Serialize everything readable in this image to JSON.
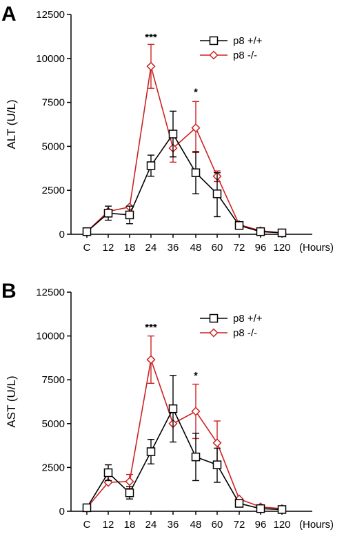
{
  "chart_data": [
    {
      "type": "line",
      "panel": "A",
      "ylabel": "ALT (U/L)",
      "xunit": "(Hours)",
      "categories": [
        "C",
        "12",
        "18",
        "24",
        "36",
        "48",
        "60",
        "72",
        "96",
        "120"
      ],
      "yticks": [
        "0",
        "2500",
        "5000",
        "7500",
        "10000",
        "12500"
      ],
      "ylim": [
        0,
        12500
      ],
      "grid": false,
      "legend_position": "top-right",
      "series": [
        {
          "name": "p8 +/+",
          "color": "#000000",
          "marker": "square",
          "values": [
            150,
            1200,
            1100,
            3900,
            5700,
            3500,
            2300,
            500,
            150,
            80
          ],
          "err_upper": [
            0,
            400,
            500,
            600,
            1300,
            1200,
            1200,
            0,
            0,
            0
          ],
          "err_lower": [
            0,
            400,
            500,
            600,
            1300,
            1200,
            1300,
            0,
            0,
            0
          ]
        },
        {
          "name": "p8 -/-",
          "color": "#cc2222",
          "marker": "diamond",
          "values": [
            150,
            1300,
            1550,
            9550,
            4900,
            6050,
            3300,
            550,
            200,
            80
          ],
          "err_upper": [
            0,
            0,
            0,
            1250,
            0,
            1500,
            300,
            0,
            0,
            0
          ],
          "err_lower": [
            0,
            0,
            0,
            1250,
            800,
            1400,
            300,
            0,
            0,
            0
          ]
        }
      ],
      "annotations": [
        {
          "category": "24",
          "value": 11200,
          "text": "***"
        },
        {
          "category": "48",
          "value": 8100,
          "text": "*"
        }
      ]
    },
    {
      "type": "line",
      "panel": "B",
      "ylabel": "AST (U/L)",
      "xunit": "(Hours)",
      "categories": [
        "C",
        "12",
        "18",
        "24",
        "36",
        "48",
        "60",
        "72",
        "96",
        "120"
      ],
      "yticks": [
        "0",
        "2500",
        "5000",
        "7500",
        "10000",
        "12500"
      ],
      "ylim": [
        0,
        12500
      ],
      "grid": false,
      "legend_position": "top-right",
      "series": [
        {
          "name": "p8 +/+",
          "color": "#000000",
          "marker": "square",
          "values": [
            200,
            2200,
            1050,
            3400,
            5850,
            3100,
            2650,
            450,
            150,
            100
          ],
          "err_upper": [
            0,
            450,
            350,
            700,
            1900,
            1350,
            950,
            0,
            0,
            0
          ],
          "err_lower": [
            0,
            450,
            350,
            700,
            1900,
            1350,
            1000,
            0,
            0,
            0
          ]
        },
        {
          "name": "p8 -/-",
          "color": "#cc2222",
          "marker": "diamond",
          "values": [
            200,
            1650,
            1700,
            8650,
            5000,
            5700,
            3900,
            700,
            250,
            150
          ],
          "err_upper": [
            0,
            0,
            400,
            1350,
            0,
            1550,
            1250,
            0,
            0,
            0
          ],
          "err_lower": [
            0,
            0,
            400,
            1350,
            0,
            1550,
            1250,
            0,
            0,
            0
          ]
        }
      ],
      "annotations": [
        {
          "category": "24",
          "value": 10500,
          "text": "***"
        },
        {
          "category": "48",
          "value": 7750,
          "text": "*"
        }
      ]
    }
  ]
}
